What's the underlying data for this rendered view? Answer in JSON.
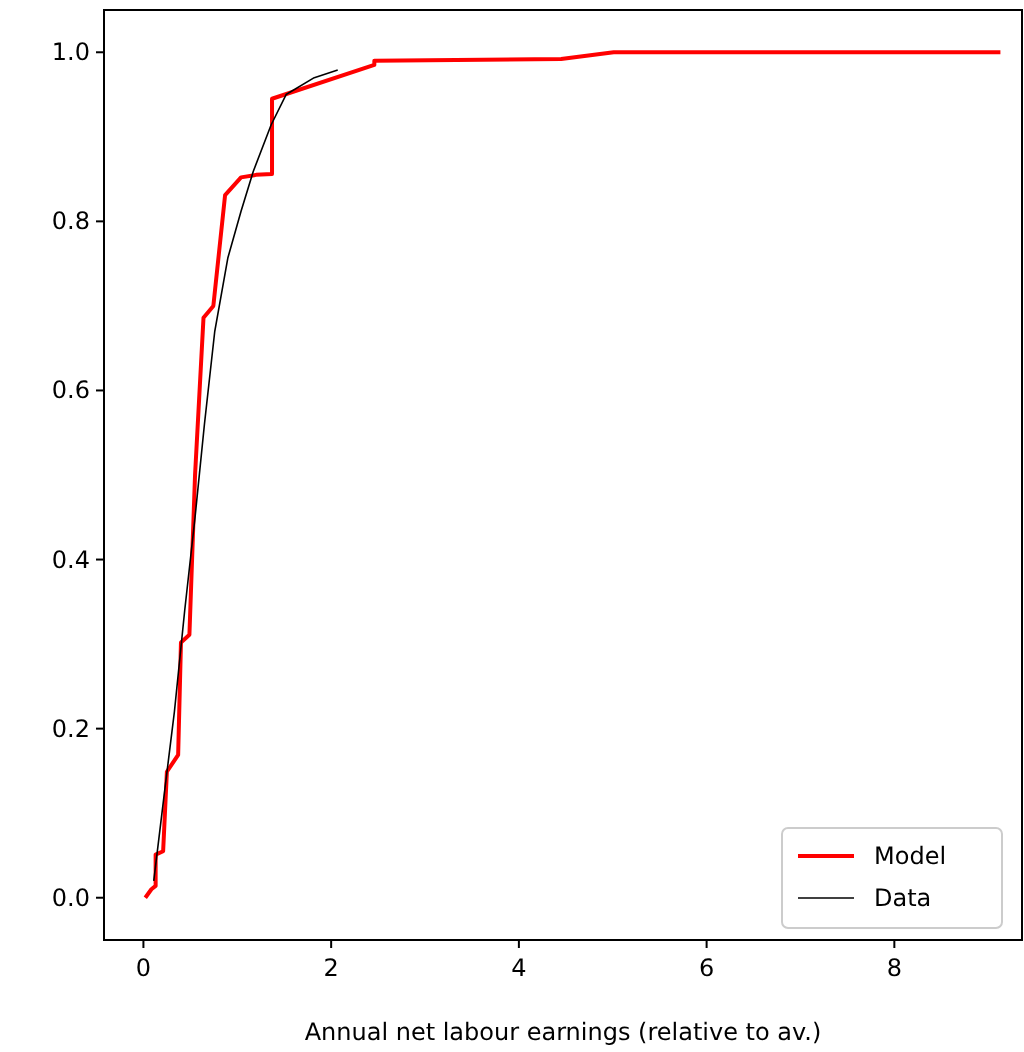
{
  "chart_data": {
    "type": "line",
    "xlabel": "Annual net labour earnings (relative to av.)",
    "xlim": [
      -0.42,
      9.36
    ],
    "ylim": [
      -0.05,
      1.05
    ],
    "xticks": [
      0,
      2,
      4,
      6,
      8
    ],
    "yticks": [
      {
        "value": 0,
        "label": "0.0"
      },
      {
        "value": 0.2,
        "label": "0.2"
      },
      {
        "value": 0.4,
        "label": "0.4"
      },
      {
        "value": 0.6,
        "label": "0.6"
      },
      {
        "value": 0.8,
        "label": "0.8"
      },
      {
        "value": 1,
        "label": "1.0"
      }
    ],
    "legend": "bottom right",
    "grid": false,
    "series": [
      {
        "name": "Model",
        "color": "#ff0000",
        "x": [
          0.02,
          0.085,
          0.13,
          0.13,
          0.21,
          0.25,
          0.37,
          0.4,
          0.49,
          0.55,
          0.64,
          0.745,
          0.87,
          1.04,
          1.2,
          1.37,
          1.37,
          2.46,
          2.46,
          4.45,
          5.01,
          9.13
        ],
        "values": [
          0,
          0.01,
          0.014,
          0.051,
          0.055,
          0.149,
          0.169,
          0.302,
          0.311,
          0.5,
          0.686,
          0.7,
          0.831,
          0.852,
          0.855,
          0.856,
          0.945,
          0.985,
          0.99,
          0.992,
          1,
          1
        ]
      },
      {
        "name": "Data",
        "color": "#000000",
        "x": [
          0.11,
          0.23,
          0.33,
          0.44,
          0.55,
          0.65,
          0.76,
          0.9,
          1.04,
          1.17,
          1.36,
          1.52,
          1.82,
          2.07
        ],
        "values": [
          0.02,
          0.13,
          0.22,
          0.34,
          0.45,
          0.56,
          0.67,
          0.757,
          0.812,
          0.859,
          0.914,
          0.95,
          0.97,
          0.979
        ]
      }
    ]
  }
}
